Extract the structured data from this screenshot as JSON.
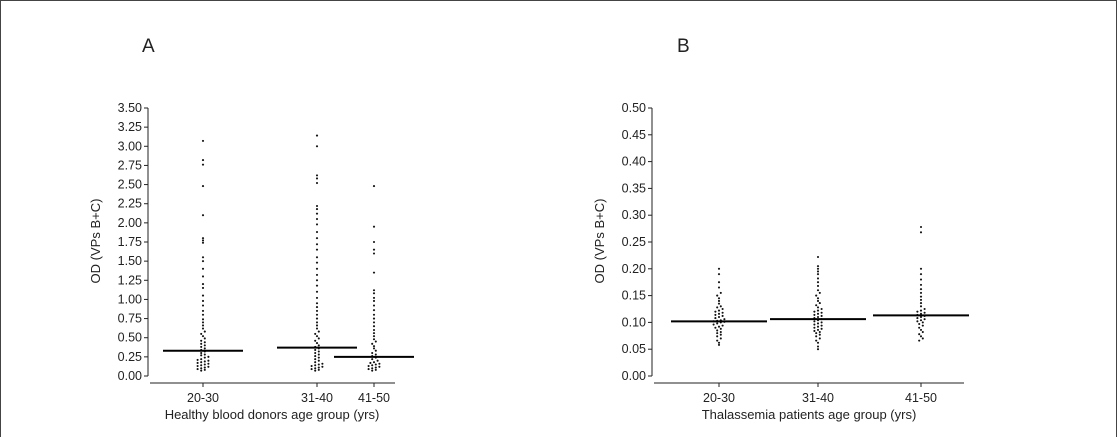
{
  "chart_data": [
    {
      "type": "scatter",
      "panel_label": "A",
      "xlabel": "Healthy blood donors age group (yrs)",
      "ylabel": "OD (VPs B+C)",
      "ylim": [
        0,
        3.5
      ],
      "ytick_labels": [
        "0.00",
        "0.25",
        "0.50",
        "0.75",
        "1.00",
        "1.25",
        "1.50",
        "1.75",
        "2.00",
        "2.25",
        "2.50",
        "2.75",
        "3.00",
        "3.25",
        "3.50"
      ],
      "categories": [
        "20-30",
        "31-40",
        "41-50"
      ],
      "groups": [
        {
          "category": "20-30",
          "mean": 0.33,
          "values": [
            3.07,
            2.82,
            2.76,
            2.48,
            2.1,
            1.8,
            1.77,
            1.74,
            1.55,
            1.5,
            1.4,
            1.3,
            1.2,
            1.15,
            1.05,
            0.98,
            0.92,
            0.85,
            0.8,
            0.74,
            0.7,
            0.66,
            0.62,
            0.58,
            0.55,
            0.52,
            0.49,
            0.46,
            0.44,
            0.42,
            0.4,
            0.38,
            0.36,
            0.34,
            0.32,
            0.3,
            0.28,
            0.27,
            0.25,
            0.24,
            0.22,
            0.21,
            0.2,
            0.19,
            0.18,
            0.17,
            0.16,
            0.15,
            0.14,
            0.13,
            0.12,
            0.11,
            0.1,
            0.09,
            0.08,
            0.07
          ]
        },
        {
          "category": "31-40",
          "mean": 0.37,
          "values": [
            3.14,
            3.0,
            2.62,
            2.58,
            2.52,
            2.22,
            2.18,
            2.12,
            2.05,
            1.98,
            1.88,
            1.8,
            1.72,
            1.65,
            1.55,
            1.48,
            1.4,
            1.32,
            1.25,
            1.18,
            1.1,
            1.02,
            0.95,
            0.9,
            0.85,
            0.8,
            0.75,
            0.7,
            0.66,
            0.62,
            0.58,
            0.55,
            0.52,
            0.49,
            0.46,
            0.43,
            0.4,
            0.38,
            0.36,
            0.34,
            0.32,
            0.3,
            0.28,
            0.26,
            0.24,
            0.22,
            0.2,
            0.18,
            0.16,
            0.15,
            0.14,
            0.13,
            0.12,
            0.11,
            0.1,
            0.09,
            0.08,
            0.07
          ]
        },
        {
          "category": "41-50",
          "mean": 0.25,
          "values": [
            2.48,
            1.95,
            1.75,
            1.65,
            1.6,
            1.35,
            1.12,
            1.08,
            1.02,
            0.98,
            0.92,
            0.86,
            0.8,
            0.75,
            0.7,
            0.65,
            0.6,
            0.56,
            0.52,
            0.48,
            0.45,
            0.42,
            0.39,
            0.36,
            0.33,
            0.3,
            0.28,
            0.26,
            0.24,
            0.22,
            0.2,
            0.18,
            0.17,
            0.16,
            0.15,
            0.14,
            0.13,
            0.12,
            0.11,
            0.1,
            0.09,
            0.08,
            0.07
          ]
        }
      ]
    },
    {
      "type": "scatter",
      "panel_label": "B",
      "xlabel": "Thalassemia patients age group (yrs)",
      "ylabel": "OD (VPs B+C)",
      "ylim": [
        0,
        0.5
      ],
      "ytick_labels": [
        "0.00",
        "0.05",
        "0.10",
        "0.15",
        "0.20",
        "0.25",
        "0.30",
        "0.35",
        "0.40",
        "0.45",
        "0.50"
      ],
      "categories": [
        "20-30",
        "31-40",
        "41-50"
      ],
      "groups": [
        {
          "category": "20-30",
          "mean": 0.102,
          "values": [
            0.2,
            0.19,
            0.175,
            0.165,
            0.155,
            0.15,
            0.145,
            0.14,
            0.135,
            0.13,
            0.128,
            0.125,
            0.122,
            0.12,
            0.118,
            0.116,
            0.114,
            0.112,
            0.11,
            0.108,
            0.106,
            0.104,
            0.103,
            0.102,
            0.101,
            0.1,
            0.098,
            0.096,
            0.094,
            0.092,
            0.09,
            0.088,
            0.085,
            0.082,
            0.08,
            0.077,
            0.074,
            0.07,
            0.066,
            0.062,
            0.058
          ]
        },
        {
          "category": "31-40",
          "mean": 0.106,
          "values": [
            0.222,
            0.205,
            0.2,
            0.195,
            0.19,
            0.182,
            0.175,
            0.168,
            0.16,
            0.155,
            0.15,
            0.145,
            0.14,
            0.136,
            0.132,
            0.128,
            0.125,
            0.122,
            0.12,
            0.118,
            0.116,
            0.114,
            0.112,
            0.11,
            0.108,
            0.106,
            0.104,
            0.102,
            0.1,
            0.098,
            0.096,
            0.094,
            0.092,
            0.09,
            0.088,
            0.086,
            0.084,
            0.082,
            0.08,
            0.077,
            0.074,
            0.07,
            0.066,
            0.062,
            0.055,
            0.05
          ]
        },
        {
          "category": "41-50",
          "mean": 0.113,
          "values": [
            0.278,
            0.268,
            0.2,
            0.19,
            0.18,
            0.17,
            0.162,
            0.155,
            0.148,
            0.142,
            0.136,
            0.13,
            0.125,
            0.122,
            0.12,
            0.118,
            0.116,
            0.114,
            0.112,
            0.11,
            0.108,
            0.106,
            0.104,
            0.102,
            0.1,
            0.097,
            0.094,
            0.09,
            0.086,
            0.082,
            0.078,
            0.074,
            0.07,
            0.066
          ]
        }
      ]
    }
  ]
}
